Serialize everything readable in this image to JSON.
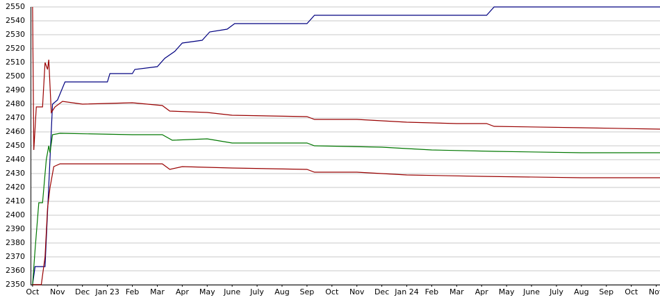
{
  "chart_data": {
    "type": "line",
    "xlim": [
      -0.08,
      25.15
    ],
    "xticks": [
      {
        "value": 0,
        "label": "Oct"
      },
      {
        "value": 1,
        "label": "Nov"
      },
      {
        "value": 2,
        "label": "Dec"
      },
      {
        "value": 3,
        "label": "Jan 23"
      },
      {
        "value": 4,
        "label": "Feb"
      },
      {
        "value": 5,
        "label": "Mar"
      },
      {
        "value": 6,
        "label": "Apr"
      },
      {
        "value": 7,
        "label": "May"
      },
      {
        "value": 8,
        "label": "June"
      },
      {
        "value": 9,
        "label": "July"
      },
      {
        "value": 10,
        "label": "Aug"
      },
      {
        "value": 11,
        "label": "Sep"
      },
      {
        "value": 12,
        "label": "Oct"
      },
      {
        "value": 13,
        "label": "Nov"
      },
      {
        "value": 14,
        "label": "Dec"
      },
      {
        "value": 15,
        "label": "Jan 24"
      },
      {
        "value": 16,
        "label": "Feb"
      },
      {
        "value": 17,
        "label": "Mar"
      },
      {
        "value": 18,
        "label": "Apr"
      },
      {
        "value": 19,
        "label": "May"
      },
      {
        "value": 20,
        "label": "June"
      },
      {
        "value": 21,
        "label": "July"
      },
      {
        "value": 22,
        "label": "Aug"
      },
      {
        "value": 23,
        "label": "Sep"
      },
      {
        "value": 24,
        "label": "Oct"
      },
      {
        "value": 25,
        "label": "Nov"
      }
    ],
    "ylim": [
      2350,
      2550
    ],
    "yticks": [
      2350,
      2360,
      2370,
      2380,
      2390,
      2400,
      2410,
      2420,
      2430,
      2440,
      2450,
      2460,
      2470,
      2480,
      2490,
      2500,
      2510,
      2520,
      2530,
      2540,
      2550
    ],
    "grid": true,
    "series": [
      {
        "color": "#000080",
        "x": [
          0,
          0.1,
          0.5,
          0.8,
          1.0,
          1.3,
          3.0,
          3.1,
          4.0,
          4.1,
          5.0,
          5.3,
          5.7,
          6.0,
          6.8,
          7.1,
          7.8,
          8.1,
          11.0,
          11.3,
          18.2,
          18.5,
          25.15
        ],
        "values": [
          2350,
          2363,
          2363,
          2480,
          2483,
          2496,
          2496,
          2502,
          2502,
          2505,
          2507,
          2513,
          2518,
          2524,
          2526,
          2532,
          2534,
          2538,
          2538,
          2544,
          2544,
          2550,
          2550
        ]
      },
      {
        "color": "#990000",
        "x": [
          0,
          0.05,
          0.15,
          0.4,
          0.5,
          0.6,
          0.65,
          0.75,
          0.9,
          1.2,
          2.0,
          4.0,
          5.2,
          5.5,
          7.0,
          8.0,
          11.0,
          11.3,
          13.0,
          15.0,
          17.0,
          18.2,
          18.5,
          22.0,
          25.15
        ],
        "values": [
          2550,
          2447,
          2478,
          2478,
          2510,
          2505,
          2512,
          2474,
          2478,
          2482,
          2480,
          2481,
          2479,
          2475,
          2474,
          2472,
          2471,
          2469,
          2469,
          2467,
          2466,
          2466,
          2464,
          2463,
          2462
        ]
      },
      {
        "color": "#007700",
        "x": [
          0,
          0.1,
          0.25,
          0.4,
          0.55,
          0.65,
          0.7,
          0.8,
          1.1,
          4.0,
          5.2,
          5.6,
          7.0,
          8.0,
          11.0,
          11.3,
          14.0,
          16.0,
          18.5,
          22.0,
          25.15
        ],
        "values": [
          2350,
          2375,
          2409,
          2409,
          2440,
          2450,
          2445,
          2458,
          2459,
          2458,
          2458,
          2454,
          2455,
          2452,
          2452,
          2450,
          2449,
          2447,
          2446,
          2445,
          2445
        ]
      },
      {
        "color": "#990000",
        "x": [
          0,
          0.35,
          0.5,
          0.6,
          0.7,
          0.85,
          1.1,
          5.2,
          5.5,
          6.0,
          8.0,
          11.0,
          11.3,
          13.0,
          15.0,
          18.0,
          22.0,
          25.15
        ],
        "values": [
          2350,
          2350,
          2370,
          2405,
          2420,
          2435,
          2437,
          2437,
          2433,
          2435,
          2434,
          2433,
          2431,
          2431,
          2429,
          2428,
          2427,
          2427
        ]
      }
    ]
  }
}
